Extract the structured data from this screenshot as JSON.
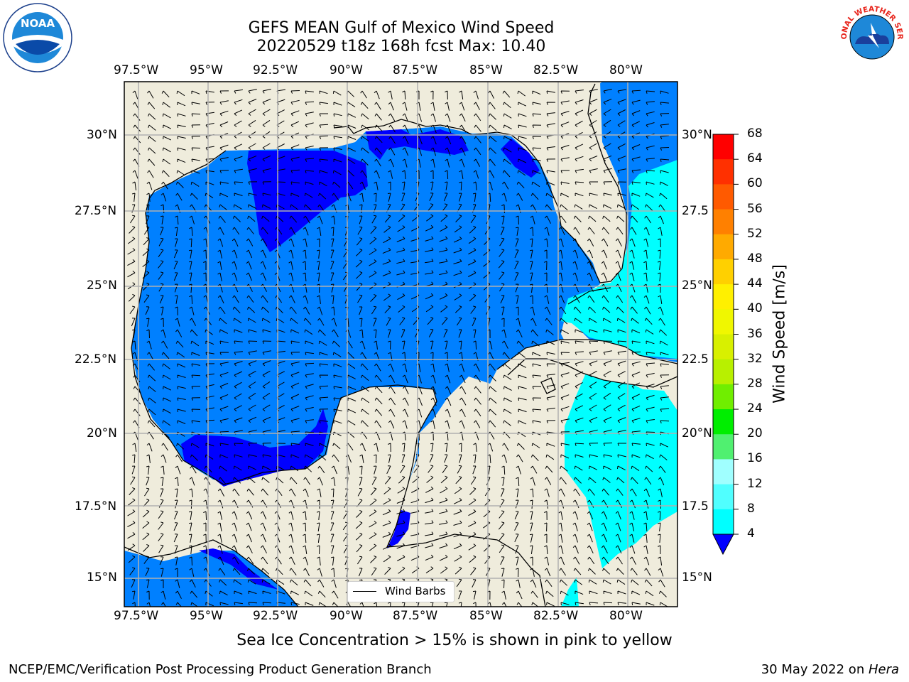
{
  "title": {
    "line1": "GEFS MEAN Gulf of Mexico Wind Speed",
    "line2": "20220529 t18z 168h fcst   Max: 10.40"
  },
  "axes": {
    "lon_labels": [
      "97.5°W",
      "95°W",
      "92.5°W",
      "90°W",
      "87.5°W",
      "85°W",
      "82.5°W",
      "80°W"
    ],
    "lat_labels_left": [
      "30°N",
      "27.5°N",
      "25°N",
      "22.5°N",
      "20°N",
      "17.5°N",
      "15°N"
    ],
    "lat_labels_right": [
      "30°N",
      "27.5",
      "25°N",
      "22.5",
      "20°N",
      "17.5",
      "15°N"
    ]
  },
  "legend": {
    "label": "Wind Barbs"
  },
  "colorbar": {
    "label": "Wind Speed [m/s]",
    "ticks": [
      "68",
      "64",
      "60",
      "56",
      "52",
      "48",
      "44",
      "40",
      "36",
      "32",
      "28",
      "24",
      "20",
      "16",
      "12",
      "8",
      "4"
    ],
    "colors": [
      "#ff0000",
      "#ff3000",
      "#ff5a00",
      "#ff8000",
      "#ffaa00",
      "#ffd000",
      "#fff000",
      "#f0f700",
      "#d8f000",
      "#b8f000",
      "#70ee00",
      "#00ee00",
      "#50f070",
      "#a0ffff",
      "#50ffff",
      "#00ffff",
      "#0080ff"
    ],
    "under_color": "#0000ff"
  },
  "note": "Sea Ice Concentration > 15% is shown in pink to yellow",
  "footer": {
    "left": "NCEP/EMC/Verification Post Processing Product Generation Branch",
    "date": "30 May 2022 on ",
    "host": "Hera"
  },
  "logos": {
    "noaa": "NOAA",
    "nws": "NATIONAL WEATHER SERVICE"
  },
  "colors": {
    "land": "#efecdc",
    "water_dark": "#0000ff",
    "water_mid": "#0080ff",
    "water_light": "#00ffff",
    "grid": "#b0b0b0"
  }
}
